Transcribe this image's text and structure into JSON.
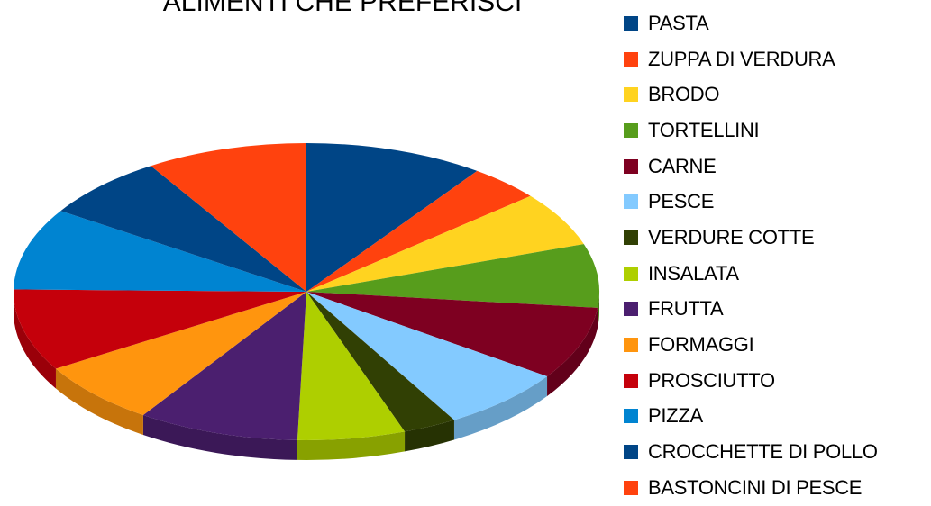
{
  "chart_data": {
    "type": "pie",
    "title": "ALIMENTI CHE PREFERISCI",
    "slices": [
      {
        "label": "PASTA",
        "value": 10,
        "color": "#004586"
      },
      {
        "label": "ZUPPA DI VERDURA",
        "value": 4,
        "color": "#ff420e"
      },
      {
        "label": "BRODO",
        "value": 6,
        "color": "#ffd320"
      },
      {
        "label": "TORTELLINI",
        "value": 7,
        "color": "#579d1c"
      },
      {
        "label": "CARNE",
        "value": 8,
        "color": "#7e0021"
      },
      {
        "label": "PESCE",
        "value": 7,
        "color": "#83caff"
      },
      {
        "label": "VERDURE COTTE",
        "value": 3,
        "color": "#314004"
      },
      {
        "label": "INSALATA",
        "value": 6,
        "color": "#aecf00"
      },
      {
        "label": "FRUTTA",
        "value": 9,
        "color": "#4b1f6f"
      },
      {
        "label": "FORMAGGI",
        "value": 7,
        "color": "#ff950e"
      },
      {
        "label": "PROSCIUTTO",
        "value": 9,
        "color": "#c5000b"
      },
      {
        "label": "PIZZA",
        "value": 9,
        "color": "#0084d1"
      },
      {
        "label": "CROCCHETTE DI POLLO",
        "value": 7,
        "color": "#004586"
      },
      {
        "label": "BASTONCINI DI PESCE",
        "value": 9,
        "color": "#ff420e"
      }
    ],
    "legend_position": "right"
  }
}
